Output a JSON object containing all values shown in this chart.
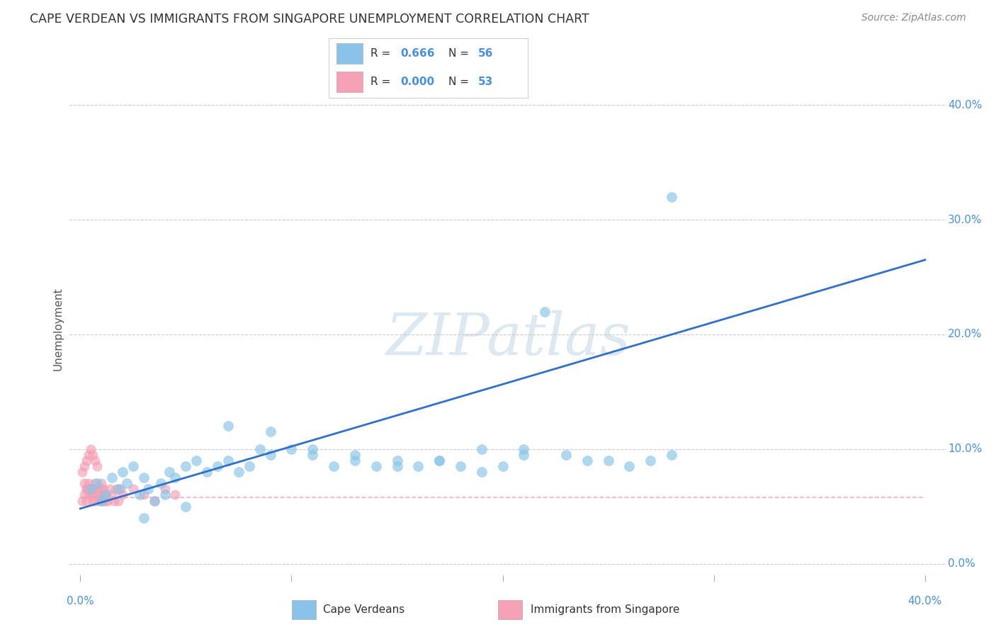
{
  "title": "CAPE VERDEAN VS IMMIGRANTS FROM SINGAPORE UNEMPLOYMENT CORRELATION CHART",
  "source": "Source: ZipAtlas.com",
  "ylabel": "Unemployment",
  "xlim": [
    -0.005,
    0.41
  ],
  "ylim": [
    -0.01,
    0.42
  ],
  "ytick_values": [
    0.0,
    0.1,
    0.2,
    0.3,
    0.4
  ],
  "xtick_values": [
    0.0,
    0.1,
    0.2,
    0.3,
    0.4
  ],
  "blue_color": "#89C4E8",
  "pink_color": "#F4A0B5",
  "line_color": "#3070C8",
  "pink_line_color": "#E8A0B8",
  "watermark_text": "ZIPatlas",
  "legend1_R": "0.666",
  "legend1_N": "56",
  "legend2_R": "0.000",
  "legend2_N": "53",
  "blue_line_x": [
    0.0,
    0.4
  ],
  "blue_line_y": [
    0.048,
    0.265
  ],
  "pink_line_x": [
    0.0,
    0.4
  ],
  "pink_line_y": [
    0.058,
    0.058
  ],
  "blue_x": [
    0.005,
    0.008,
    0.01,
    0.012,
    0.015,
    0.018,
    0.02,
    0.022,
    0.025,
    0.028,
    0.03,
    0.032,
    0.035,
    0.038,
    0.04,
    0.042,
    0.045,
    0.05,
    0.055,
    0.06,
    0.065,
    0.07,
    0.075,
    0.08,
    0.085,
    0.09,
    0.1,
    0.11,
    0.12,
    0.13,
    0.14,
    0.15,
    0.16,
    0.17,
    0.18,
    0.19,
    0.2,
    0.21,
    0.22,
    0.23,
    0.24,
    0.25,
    0.26,
    0.27,
    0.28,
    0.21,
    0.19,
    0.17,
    0.15,
    0.13,
    0.11,
    0.09,
    0.07,
    0.05,
    0.03,
    0.28
  ],
  "blue_y": [
    0.065,
    0.07,
    0.055,
    0.06,
    0.075,
    0.065,
    0.08,
    0.07,
    0.085,
    0.06,
    0.075,
    0.065,
    0.055,
    0.07,
    0.06,
    0.08,
    0.075,
    0.085,
    0.09,
    0.08,
    0.085,
    0.09,
    0.08,
    0.085,
    0.1,
    0.095,
    0.1,
    0.095,
    0.085,
    0.095,
    0.085,
    0.09,
    0.085,
    0.09,
    0.085,
    0.1,
    0.085,
    0.095,
    0.22,
    0.095,
    0.09,
    0.09,
    0.085,
    0.09,
    0.095,
    0.1,
    0.08,
    0.09,
    0.085,
    0.09,
    0.1,
    0.115,
    0.12,
    0.05,
    0.04,
    0.32
  ],
  "pink_x": [
    0.001,
    0.002,
    0.003,
    0.004,
    0.005,
    0.006,
    0.007,
    0.008,
    0.009,
    0.01,
    0.011,
    0.012,
    0.013,
    0.014,
    0.015,
    0.016,
    0.017,
    0.018,
    0.019,
    0.02,
    0.003,
    0.004,
    0.005,
    0.006,
    0.007,
    0.008,
    0.009,
    0.01,
    0.011,
    0.012,
    0.002,
    0.003,
    0.004,
    0.005,
    0.006,
    0.007,
    0.008,
    0.009,
    0.01,
    0.011,
    0.001,
    0.002,
    0.003,
    0.004,
    0.005,
    0.006,
    0.007,
    0.008,
    0.025,
    0.03,
    0.035,
    0.04,
    0.045
  ],
  "pink_y": [
    0.055,
    0.06,
    0.055,
    0.065,
    0.06,
    0.055,
    0.065,
    0.06,
    0.055,
    0.065,
    0.055,
    0.06,
    0.055,
    0.065,
    0.06,
    0.055,
    0.065,
    0.055,
    0.065,
    0.06,
    0.065,
    0.06,
    0.065,
    0.06,
    0.055,
    0.065,
    0.06,
    0.055,
    0.06,
    0.055,
    0.07,
    0.065,
    0.07,
    0.065,
    0.06,
    0.07,
    0.065,
    0.06,
    0.07,
    0.065,
    0.08,
    0.085,
    0.09,
    0.095,
    0.1,
    0.095,
    0.09,
    0.085,
    0.065,
    0.06,
    0.055,
    0.065,
    0.06
  ]
}
